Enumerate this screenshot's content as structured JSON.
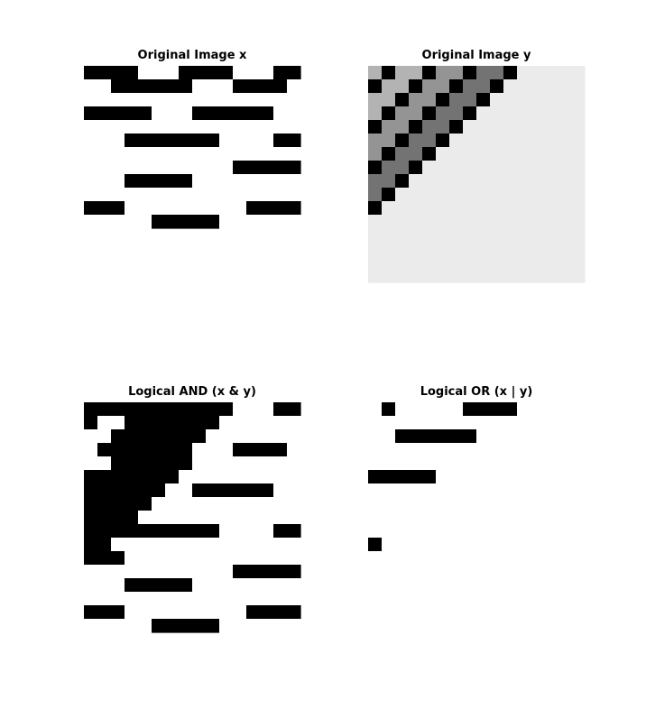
{
  "chart_data": [
    {
      "type": "heatmap",
      "title": "Original Image x",
      "colormap": "gray",
      "clim": [
        0,
        1
      ],
      "grid": false,
      "axes_visible": false,
      "z": [
        [
          0,
          0,
          0,
          0,
          1,
          1,
          1,
          0,
          0,
          0,
          0,
          1,
          1,
          1,
          0,
          0
        ],
        [
          1,
          1,
          0,
          0,
          0,
          0,
          0,
          0,
          1,
          1,
          1,
          0,
          0,
          0,
          0,
          1
        ],
        [
          1,
          1,
          1,
          1,
          1,
          1,
          1,
          1,
          1,
          1,
          1,
          1,
          1,
          1,
          1,
          1
        ],
        [
          0,
          0,
          0,
          0,
          0,
          1,
          1,
          1,
          0,
          0,
          0,
          0,
          0,
          0,
          1,
          1
        ],
        [
          1,
          1,
          1,
          1,
          1,
          1,
          1,
          1,
          1,
          1,
          1,
          1,
          1,
          1,
          1,
          1
        ],
        [
          1,
          1,
          1,
          0,
          0,
          0,
          0,
          0,
          0,
          0,
          1,
          1,
          1,
          1,
          0,
          0
        ],
        [
          1,
          1,
          1,
          1,
          1,
          1,
          1,
          1,
          1,
          1,
          1,
          1,
          1,
          1,
          1,
          1
        ],
        [
          1,
          1,
          1,
          1,
          1,
          1,
          1,
          1,
          1,
          1,
          1,
          0,
          0,
          0,
          0,
          0
        ],
        [
          1,
          1,
          1,
          0,
          0,
          0,
          0,
          0,
          1,
          1,
          1,
          1,
          1,
          1,
          1,
          1
        ],
        [
          1,
          1,
          1,
          1,
          1,
          1,
          1,
          1,
          1,
          1,
          1,
          1,
          1,
          1,
          1,
          1
        ],
        [
          0,
          0,
          0,
          1,
          1,
          1,
          1,
          1,
          1,
          1,
          1,
          1,
          0,
          0,
          0,
          0
        ],
        [
          1,
          1,
          1,
          1,
          1,
          0,
          0,
          0,
          0,
          0,
          1,
          1,
          1,
          1,
          1,
          1
        ]
      ]
    },
    {
      "type": "heatmap",
      "title": "Original Image y",
      "colormap": "gray",
      "clim": [
        0,
        1
      ],
      "grid": false,
      "axes_visible": false,
      "z": [
        [
          0.7,
          0.0,
          0.7,
          0.7,
          0.0,
          0.58,
          0.58,
          0.0,
          0.45,
          0.45,
          0.0,
          0.92,
          0.92,
          0.92,
          0.92,
          0.92
        ],
        [
          0.0,
          0.7,
          0.7,
          0.0,
          0.58,
          0.58,
          0.0,
          0.45,
          0.45,
          0.0,
          0.92,
          0.92,
          0.92,
          0.92,
          0.92,
          0.92
        ],
        [
          0.7,
          0.7,
          0.0,
          0.58,
          0.58,
          0.0,
          0.45,
          0.45,
          0.0,
          0.92,
          0.92,
          0.92,
          0.92,
          0.92,
          0.92,
          0.92
        ],
        [
          0.7,
          0.0,
          0.58,
          0.58,
          0.0,
          0.45,
          0.45,
          0.0,
          0.92,
          0.92,
          0.92,
          0.92,
          0.92,
          0.92,
          0.92,
          0.92
        ],
        [
          0.0,
          0.58,
          0.58,
          0.0,
          0.45,
          0.45,
          0.0,
          0.92,
          0.92,
          0.92,
          0.92,
          0.92,
          0.92,
          0.92,
          0.92,
          0.92
        ],
        [
          0.58,
          0.58,
          0.0,
          0.45,
          0.45,
          0.0,
          0.92,
          0.92,
          0.92,
          0.92,
          0.92,
          0.92,
          0.92,
          0.92,
          0.92,
          0.92
        ],
        [
          0.58,
          0.0,
          0.45,
          0.45,
          0.0,
          0.92,
          0.92,
          0.92,
          0.92,
          0.92,
          0.92,
          0.92,
          0.92,
          0.92,
          0.92,
          0.92
        ],
        [
          0.0,
          0.45,
          0.45,
          0.0,
          0.92,
          0.92,
          0.92,
          0.92,
          0.92,
          0.92,
          0.92,
          0.92,
          0.92,
          0.92,
          0.92,
          0.92
        ],
        [
          0.45,
          0.45,
          0.0,
          0.92,
          0.92,
          0.92,
          0.92,
          0.92,
          0.92,
          0.92,
          0.92,
          0.92,
          0.92,
          0.92,
          0.92,
          0.92
        ],
        [
          0.45,
          0.0,
          0.92,
          0.92,
          0.92,
          0.92,
          0.92,
          0.92,
          0.92,
          0.92,
          0.92,
          0.92,
          0.92,
          0.92,
          0.92,
          0.92
        ],
        [
          0.0,
          0.92,
          0.92,
          0.92,
          0.92,
          0.92,
          0.92,
          0.92,
          0.92,
          0.92,
          0.92,
          0.92,
          0.92,
          0.92,
          0.92,
          0.92
        ],
        [
          0.92,
          0.92,
          0.92,
          0.92,
          0.92,
          0.92,
          0.92,
          0.92,
          0.92,
          0.92,
          0.92,
          0.92,
          0.92,
          0.92,
          0.92,
          0.92
        ],
        [
          0.92,
          0.92,
          0.92,
          0.92,
          0.92,
          0.92,
          0.92,
          0.92,
          0.92,
          0.92,
          0.92,
          0.92,
          0.92,
          0.92,
          0.92,
          0.92
        ],
        [
          0.92,
          0.92,
          0.92,
          0.92,
          0.92,
          0.92,
          0.92,
          0.92,
          0.92,
          0.92,
          0.92,
          0.92,
          0.92,
          0.92,
          0.92,
          0.92
        ],
        [
          0.92,
          0.92,
          0.92,
          0.92,
          0.92,
          0.92,
          0.92,
          0.92,
          0.92,
          0.92,
          0.92,
          0.92,
          0.92,
          0.92,
          0.92,
          0.92
        ],
        [
          0.92,
          0.92,
          0.92,
          0.92,
          0.92,
          0.92,
          0.92,
          0.92,
          0.92,
          0.92,
          0.92,
          0.92,
          0.92,
          0.92,
          0.92,
          0.92
        ]
      ]
    },
    {
      "type": "heatmap",
      "title": "Logical AND (x & y)",
      "colormap": "gray",
      "clim": [
        0,
        1
      ],
      "grid": false,
      "axes_visible": false,
      "z": [
        [
          0,
          0,
          0,
          0,
          0,
          0,
          0,
          0,
          0,
          0,
          0,
          1,
          1,
          1,
          0,
          0
        ],
        [
          0,
          1,
          1,
          0,
          0,
          0,
          0,
          0,
          0,
          0,
          1,
          1,
          1,
          1,
          1,
          1
        ],
        [
          1,
          1,
          0,
          0,
          0,
          0,
          0,
          0,
          0,
          1,
          1,
          1,
          1,
          1,
          1,
          1
        ],
        [
          1,
          0,
          0,
          0,
          0,
          0,
          0,
          0,
          1,
          1,
          1,
          0,
          0,
          0,
          0,
          1
        ],
        [
          1,
          1,
          0,
          0,
          0,
          0,
          0,
          0,
          1,
          1,
          1,
          1,
          1,
          1,
          1,
          1
        ],
        [
          0,
          0,
          0,
          0,
          0,
          0,
          0,
          1,
          1,
          1,
          1,
          1,
          1,
          1,
          1,
          1
        ],
        [
          0,
          0,
          0,
          0,
          0,
          0,
          1,
          1,
          0,
          0,
          0,
          0,
          0,
          0,
          1,
          1
        ],
        [
          0,
          0,
          0,
          0,
          0,
          1,
          1,
          1,
          1,
          1,
          1,
          1,
          1,
          1,
          1,
          1
        ],
        [
          0,
          0,
          0,
          0,
          1,
          1,
          1,
          1,
          1,
          1,
          1,
          1,
          1,
          1,
          1,
          1
        ],
        [
          0,
          0,
          0,
          0,
          0,
          0,
          0,
          0,
          0,
          0,
          1,
          1,
          1,
          1,
          0,
          0
        ],
        [
          0,
          0,
          1,
          1,
          1,
          1,
          1,
          1,
          1,
          1,
          1,
          1,
          1,
          1,
          1,
          1
        ],
        [
          0,
          0,
          0,
          1,
          1,
          1,
          1,
          1,
          1,
          1,
          1,
          1,
          1,
          1,
          1,
          1
        ],
        [
          1,
          1,
          1,
          1,
          1,
          1,
          1,
          1,
          1,
          1,
          1,
          0,
          0,
          0,
          0,
          0
        ],
        [
          1,
          1,
          1,
          0,
          0,
          0,
          0,
          0,
          1,
          1,
          1,
          1,
          1,
          1,
          1,
          1
        ],
        [
          1,
          1,
          1,
          1,
          1,
          1,
          1,
          1,
          1,
          1,
          1,
          1,
          1,
          1,
          1,
          1
        ],
        [
          0,
          0,
          0,
          1,
          1,
          1,
          1,
          1,
          1,
          1,
          1,
          1,
          0,
          0,
          0,
          0
        ],
        [
          1,
          1,
          1,
          1,
          1,
          0,
          0,
          0,
          0,
          0,
          1,
          1,
          1,
          1,
          1,
          1
        ]
      ]
    },
    {
      "type": "heatmap",
      "title": "Logical OR (x | y)",
      "colormap": "gray",
      "clim": [
        0,
        1
      ],
      "grid": false,
      "axes_visible": false,
      "z": [
        [
          1,
          0,
          1,
          1,
          1,
          1,
          1,
          0,
          0,
          0,
          0,
          1,
          1,
          1,
          1,
          1
        ],
        [
          1,
          1,
          1,
          1,
          1,
          1,
          1,
          1,
          1,
          1,
          1,
          1,
          1,
          1,
          1,
          1
        ],
        [
          1,
          1,
          0,
          0,
          0,
          0,
          0,
          0,
          1,
          1,
          1,
          1,
          1,
          1,
          1,
          1
        ],
        [
          1,
          1,
          1,
          1,
          1,
          1,
          1,
          1,
          1,
          1,
          1,
          1,
          1,
          1,
          1,
          1
        ],
        [
          1,
          1,
          1,
          1,
          1,
          1,
          1,
          1,
          1,
          1,
          1,
          1,
          1,
          1,
          1,
          1
        ],
        [
          0,
          0,
          0,
          0,
          0,
          1,
          1,
          1,
          1,
          1,
          1,
          1,
          1,
          1,
          1,
          1
        ],
        [
          1,
          1,
          1,
          1,
          1,
          1,
          1,
          1,
          1,
          1,
          1,
          1,
          1,
          1,
          1,
          1
        ],
        [
          1,
          1,
          1,
          1,
          1,
          1,
          1,
          1,
          1,
          1,
          1,
          1,
          1,
          1,
          1,
          1
        ],
        [
          1,
          1,
          1,
          1,
          1,
          1,
          1,
          1,
          1,
          1,
          1,
          1,
          1,
          1,
          1,
          1
        ],
        [
          1,
          1,
          1,
          1,
          1,
          1,
          1,
          1,
          1,
          1,
          1,
          1,
          1,
          1,
          1,
          1
        ],
        [
          0,
          1,
          1,
          1,
          1,
          1,
          1,
          1,
          1,
          1,
          1,
          1,
          1,
          1,
          1,
          1
        ],
        [
          1,
          1,
          1,
          1,
          1,
          1,
          1,
          1,
          1,
          1,
          1,
          1,
          1,
          1,
          1,
          1
        ],
        [
          1,
          1,
          1,
          1,
          1,
          1,
          1,
          1,
          1,
          1,
          1,
          1,
          1,
          1,
          1,
          1
        ],
        [
          1,
          1,
          1,
          1,
          1,
          1,
          1,
          1,
          1,
          1,
          1,
          1,
          1,
          1,
          1,
          1
        ],
        [
          1,
          1,
          1,
          1,
          1,
          1,
          1,
          1,
          1,
          1,
          1,
          1,
          1,
          1,
          1,
          1
        ],
        [
          1,
          1,
          1,
          1,
          1,
          1,
          1,
          1,
          1,
          1,
          1,
          1,
          1,
          1,
          1,
          1
        ],
        [
          1,
          1,
          1,
          1,
          1,
          1,
          1,
          1,
          1,
          1,
          1,
          1,
          1,
          1,
          1,
          1
        ]
      ]
    }
  ]
}
